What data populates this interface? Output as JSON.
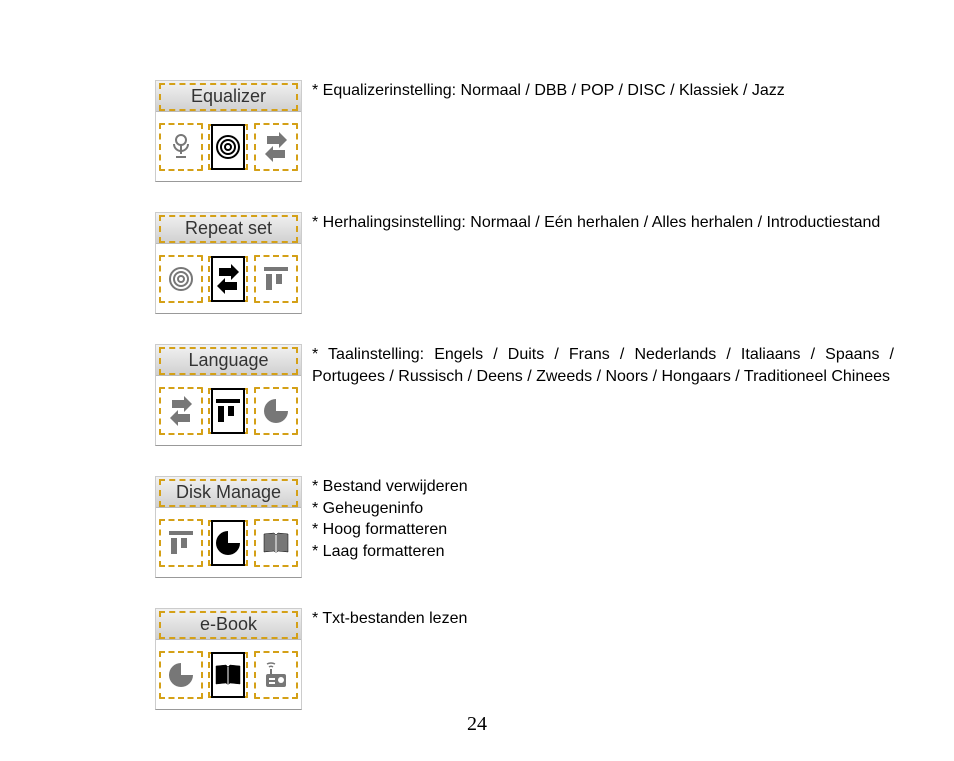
{
  "page_number": "24",
  "sections": [
    {
      "title": "Equalizer",
      "desc": [
        "Equalizerinstelling: Normaal / DBB / POP / DISC / Klassiek / Jazz"
      ],
      "icons": [
        "mic",
        "target",
        "swap"
      ],
      "sel": 1,
      "dash": [
        0,
        2
      ],
      "header_dash": true
    },
    {
      "title": "Repeat set",
      "desc": [
        "Herhalingsinstelling: Normaal / Eén herhalen / Alles herhalen / Introductiestand"
      ],
      "icons": [
        "target",
        "swap",
        "bars"
      ],
      "sel": 1,
      "dash": [
        0,
        2
      ],
      "header_dash": true
    },
    {
      "title": "Language",
      "desc": [
        "Taalinstelling: Engels / Duits / Frans / Nederlands / Italiaans / Spaans / Portugees / Russisch / Deens / Zweeds / Noors / Hongaars / Traditioneel Chinees"
      ],
      "icons": [
        "swap",
        "bars",
        "pac"
      ],
      "sel": 1,
      "dash": [
        0,
        2
      ],
      "header_dash": true
    },
    {
      "title": "Disk Manage",
      "desc": [
        "Bestand verwijderen",
        "Geheugeninfo",
        "Hoog formatteren",
        "Laag formatteren"
      ],
      "icons": [
        "bars",
        "pac",
        "book"
      ],
      "sel": 1,
      "dash": [
        0,
        2
      ],
      "header_dash": true
    },
    {
      "title": "e-Book",
      "desc": [
        "Txt-bestanden lezen"
      ],
      "icons": [
        "pac",
        "book",
        "radio"
      ],
      "sel": 1,
      "dash": [
        0,
        2
      ],
      "header_dash": true
    }
  ]
}
